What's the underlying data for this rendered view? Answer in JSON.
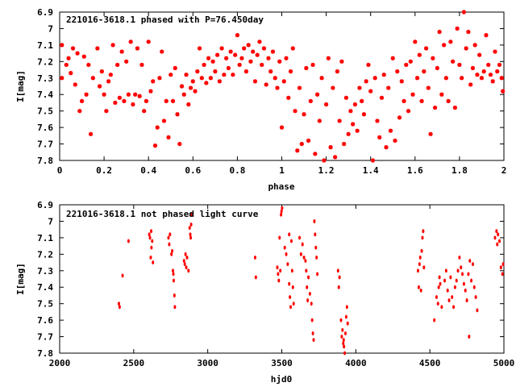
{
  "marker_color": "#ff0000",
  "chart_data": [
    {
      "type": "scatter",
      "title": "221016-3618.1 phased with P=76.450day",
      "xlabel": "phase",
      "ylabel": "I[mag]",
      "xlim": [
        0,
        2
      ],
      "ylim": [
        6.9,
        7.8
      ],
      "y_inverted": true,
      "grid": false,
      "x_ticks": [
        "0",
        "0.2",
        "0.4",
        "0.6",
        "0.8",
        "1",
        "1.2",
        "1.4",
        "1.6",
        "1.8",
        "2"
      ],
      "y_ticks": [
        "6.9",
        "7",
        "7.1",
        "7.2",
        "7.3",
        "7.4",
        "7.5",
        "7.6",
        "7.7",
        "7.8"
      ],
      "marker": "star",
      "points": [
        [
          0.01,
          7.1
        ],
        [
          0.01,
          7.3
        ],
        [
          0.03,
          7.22
        ],
        [
          0.04,
          7.18
        ],
        [
          0.05,
          7.27
        ],
        [
          0.06,
          7.12
        ],
        [
          0.07,
          7.34
        ],
        [
          0.08,
          7.15
        ],
        [
          0.09,
          7.5
        ],
        [
          0.1,
          7.44
        ],
        [
          0.11,
          7.17
        ],
        [
          0.12,
          7.4
        ],
        [
          0.13,
          7.22
        ],
        [
          0.14,
          7.64
        ],
        [
          0.15,
          7.3
        ],
        [
          0.17,
          7.12
        ],
        [
          0.18,
          7.35
        ],
        [
          0.19,
          7.26
        ],
        [
          0.2,
          7.4
        ],
        [
          0.21,
          7.5
        ],
        [
          0.22,
          7.32
        ],
        [
          0.23,
          7.28
        ],
        [
          0.24,
          7.1
        ],
        [
          0.25,
          7.45
        ],
        [
          0.26,
          7.22
        ],
        [
          0.27,
          7.42
        ],
        [
          0.28,
          7.14
        ],
        [
          0.29,
          7.44
        ],
        [
          0.3,
          7.2
        ],
        [
          0.31,
          7.4
        ],
        [
          0.32,
          7.08
        ],
        [
          0.33,
          7.46
        ],
        [
          0.34,
          7.4
        ],
        [
          0.35,
          7.12
        ],
        [
          0.36,
          7.41
        ],
        [
          0.37,
          7.22
        ],
        [
          0.38,
          7.5
        ],
        [
          0.39,
          7.44
        ],
        [
          0.4,
          7.08
        ],
        [
          0.41,
          7.38
        ],
        [
          0.42,
          7.32
        ],
        [
          0.43,
          7.71
        ],
        [
          0.44,
          7.6
        ],
        [
          0.45,
          7.3
        ],
        [
          0.46,
          7.14
        ],
        [
          0.47,
          7.56
        ],
        [
          0.48,
          7.44
        ],
        [
          0.49,
          7.66
        ],
        [
          0.5,
          7.28
        ],
        [
          0.51,
          7.44
        ],
        [
          0.52,
          7.24
        ],
        [
          0.53,
          7.52
        ],
        [
          0.54,
          7.7
        ],
        [
          0.55,
          7.35
        ],
        [
          0.56,
          7.4
        ],
        [
          0.57,
          7.28
        ],
        [
          0.58,
          7.46
        ],
        [
          0.59,
          7.36
        ],
        [
          0.6,
          7.32
        ],
        [
          0.61,
          7.38
        ],
        [
          0.62,
          7.26
        ],
        [
          0.63,
          7.12
        ],
        [
          0.64,
          7.3
        ],
        [
          0.65,
          7.22
        ],
        [
          0.66,
          7.33
        ],
        [
          0.67,
          7.18
        ],
        [
          0.68,
          7.3
        ],
        [
          0.69,
          7.2
        ],
        [
          0.7,
          7.26
        ],
        [
          0.71,
          7.16
        ],
        [
          0.72,
          7.32
        ],
        [
          0.73,
          7.12
        ],
        [
          0.74,
          7.28
        ],
        [
          0.75,
          7.18
        ],
        [
          0.76,
          7.24
        ],
        [
          0.77,
          7.14
        ],
        [
          0.78,
          7.28
        ],
        [
          0.79,
          7.16
        ],
        [
          0.8,
          7.04
        ],
        [
          0.81,
          7.22
        ],
        [
          0.82,
          7.18
        ],
        [
          0.83,
          7.12
        ],
        [
          0.84,
          7.26
        ],
        [
          0.85,
          7.1
        ],
        [
          0.86,
          7.2
        ],
        [
          0.87,
          7.14
        ],
        [
          0.88,
          7.32
        ],
        [
          0.89,
          7.16
        ],
        [
          0.9,
          7.08
        ],
        [
          0.91,
          7.22
        ],
        [
          0.92,
          7.12
        ],
        [
          0.93,
          7.34
        ],
        [
          0.94,
          7.18
        ],
        [
          0.95,
          7.26
        ],
        [
          0.96,
          7.14
        ],
        [
          0.97,
          7.3
        ],
        [
          0.98,
          7.36
        ],
        [
          0.99,
          7.2
        ],
        [
          1.0,
          7.6
        ],
        [
          1.01,
          7.32
        ],
        [
          1.02,
          7.18
        ],
        [
          1.03,
          7.42
        ],
        [
          1.04,
          7.26
        ],
        [
          1.05,
          7.12
        ],
        [
          1.06,
          7.5
        ],
        [
          1.07,
          7.74
        ],
        [
          1.08,
          7.36
        ],
        [
          1.09,
          7.7
        ],
        [
          1.1,
          7.52
        ],
        [
          1.11,
          7.24
        ],
        [
          1.12,
          7.68
        ],
        [
          1.13,
          7.44
        ],
        [
          1.14,
          7.22
        ],
        [
          1.15,
          7.76
        ],
        [
          1.16,
          7.4
        ],
        [
          1.17,
          7.56
        ],
        [
          1.18,
          7.3
        ],
        [
          1.19,
          7.8
        ],
        [
          1.2,
          7.46
        ],
        [
          1.21,
          7.18
        ],
        [
          1.22,
          7.72
        ],
        [
          1.23,
          7.36
        ],
        [
          1.24,
          7.78
        ],
        [
          1.25,
          7.26
        ],
        [
          1.26,
          7.56
        ],
        [
          1.27,
          7.2
        ],
        [
          1.28,
          7.7
        ],
        [
          1.29,
          7.42
        ],
        [
          1.3,
          7.64
        ],
        [
          1.31,
          7.5
        ],
        [
          1.32,
          7.58
        ],
        [
          1.33,
          7.46
        ],
        [
          1.34,
          7.62
        ],
        [
          1.35,
          7.36
        ],
        [
          1.36,
          7.44
        ],
        [
          1.37,
          7.52
        ],
        [
          1.38,
          7.32
        ],
        [
          1.39,
          7.22
        ],
        [
          1.4,
          7.38
        ],
        [
          1.41,
          7.8
        ],
        [
          1.42,
          7.3
        ],
        [
          1.43,
          7.56
        ],
        [
          1.44,
          7.66
        ],
        [
          1.45,
          7.42
        ],
        [
          1.46,
          7.28
        ],
        [
          1.47,
          7.72
        ],
        [
          1.48,
          7.36
        ],
        [
          1.49,
          7.62
        ],
        [
          1.5,
          7.18
        ],
        [
          1.51,
          7.68
        ],
        [
          1.52,
          7.26
        ],
        [
          1.53,
          7.54
        ],
        [
          1.54,
          7.32
        ],
        [
          1.55,
          7.44
        ],
        [
          1.56,
          7.22
        ],
        [
          1.57,
          7.5
        ],
        [
          1.58,
          7.2
        ],
        [
          1.59,
          7.4
        ],
        [
          1.6,
          7.08
        ],
        [
          1.61,
          7.3
        ],
        [
          1.62,
          7.16
        ],
        [
          1.63,
          7.44
        ],
        [
          1.64,
          7.26
        ],
        [
          1.65,
          7.12
        ],
        [
          1.66,
          7.36
        ],
        [
          1.67,
          7.64
        ],
        [
          1.68,
          7.18
        ],
        [
          1.69,
          7.48
        ],
        [
          1.7,
          7.24
        ],
        [
          1.71,
          7.02
        ],
        [
          1.72,
          7.4
        ],
        [
          1.73,
          7.1
        ],
        [
          1.74,
          7.3
        ],
        [
          1.75,
          7.44
        ],
        [
          1.76,
          7.08
        ],
        [
          1.77,
          7.2
        ],
        [
          1.78,
          7.48
        ],
        [
          1.79,
          7.0
        ],
        [
          1.8,
          7.22
        ],
        [
          1.81,
          7.3
        ],
        [
          1.82,
          6.9
        ],
        [
          1.83,
          7.12
        ],
        [
          1.84,
          7.02
        ],
        [
          1.85,
          7.34
        ],
        [
          1.86,
          7.24
        ],
        [
          1.87,
          7.1
        ],
        [
          1.88,
          7.28
        ],
        [
          1.89,
          7.16
        ],
        [
          1.9,
          7.3
        ],
        [
          1.91,
          7.26
        ],
        [
          1.92,
          7.04
        ],
        [
          1.93,
          7.22
        ],
        [
          1.94,
          7.28
        ],
        [
          1.95,
          7.32
        ],
        [
          1.96,
          7.14
        ],
        [
          1.97,
          7.26
        ],
        [
          1.98,
          7.22
        ],
        [
          1.99,
          7.3
        ],
        [
          1.995,
          7.38
        ]
      ]
    },
    {
      "type": "scatter",
      "title": "221016-3618.1 not phased light curve",
      "xlabel": "hjd0",
      "ylabel": "I[mag]",
      "xlim": [
        2000,
        5000
      ],
      "ylim": [
        6.9,
        7.8
      ],
      "y_inverted": true,
      "grid": false,
      "x_ticks": [
        "2000",
        "2500",
        "3000",
        "3500",
        "4000",
        "4500",
        "5000"
      ],
      "y_ticks": [
        "6.9",
        "7",
        "7.1",
        "7.2",
        "7.3",
        "7.4",
        "7.5",
        "7.6",
        "7.7",
        "7.8"
      ],
      "marker": "dot",
      "points": [
        [
          2400,
          7.5
        ],
        [
          2405,
          7.52
        ],
        [
          2425,
          7.33
        ],
        [
          2465,
          7.12
        ],
        [
          2605,
          7.08
        ],
        [
          2610,
          7.1
        ],
        [
          2615,
          7.22
        ],
        [
          2620,
          7.16
        ],
        [
          2625,
          7.12
        ],
        [
          2630,
          7.25
        ],
        [
          2618,
          7.06
        ],
        [
          2735,
          7.1
        ],
        [
          2740,
          7.14
        ],
        [
          2745,
          7.08
        ],
        [
          2755,
          7.2
        ],
        [
          2760,
          7.18
        ],
        [
          2765,
          7.3
        ],
        [
          2770,
          7.36
        ],
        [
          2775,
          7.45
        ],
        [
          2778,
          7.52
        ],
        [
          2768,
          7.32
        ],
        [
          2840,
          7.24
        ],
        [
          2845,
          7.26
        ],
        [
          2850,
          7.2
        ],
        [
          2855,
          7.28
        ],
        [
          2860,
          7.22
        ],
        [
          2870,
          7.3
        ],
        [
          2878,
          7.04
        ],
        [
          2882,
          7.08
        ],
        [
          2888,
          7.02
        ],
        [
          2892,
          6.96
        ],
        [
          2885,
          7.1
        ],
        [
          3320,
          7.22
        ],
        [
          3325,
          7.34
        ],
        [
          3470,
          7.28
        ],
        [
          3475,
          7.32
        ],
        [
          3480,
          7.36
        ],
        [
          3485,
          7.1
        ],
        [
          3490,
          7.3
        ],
        [
          3495,
          6.96
        ],
        [
          3498,
          6.94
        ],
        [
          3502,
          6.92
        ],
        [
          3520,
          7.16
        ],
        [
          3530,
          7.2
        ],
        [
          3540,
          7.26
        ],
        [
          3550,
          7.38
        ],
        [
          3555,
          7.46
        ],
        [
          3560,
          7.52
        ],
        [
          3565,
          7.12
        ],
        [
          3570,
          7.3
        ],
        [
          3575,
          7.4
        ],
        [
          3580,
          7.5
        ],
        [
          3550,
          7.08
        ],
        [
          3620,
          7.1
        ],
        [
          3630,
          7.2
        ],
        [
          3640,
          7.14
        ],
        [
          3650,
          7.22
        ],
        [
          3660,
          7.24
        ],
        [
          3665,
          7.3
        ],
        [
          3670,
          7.4
        ],
        [
          3675,
          7.48
        ],
        [
          3680,
          7.34
        ],
        [
          3690,
          7.44
        ],
        [
          3700,
          7.5
        ],
        [
          3705,
          7.6
        ],
        [
          3710,
          7.68
        ],
        [
          3715,
          7.72
        ],
        [
          3720,
          7.0
        ],
        [
          3725,
          7.08
        ],
        [
          3730,
          7.16
        ],
        [
          3735,
          7.22
        ],
        [
          3740,
          7.32
        ],
        [
          3880,
          7.3
        ],
        [
          3885,
          7.4
        ],
        [
          3890,
          7.34
        ],
        [
          3900,
          7.6
        ],
        [
          3905,
          7.7
        ],
        [
          3910,
          7.66
        ],
        [
          3915,
          7.74
        ],
        [
          3920,
          7.76
        ],
        [
          3925,
          7.8
        ],
        [
          3930,
          7.68
        ],
        [
          3935,
          7.58
        ],
        [
          3940,
          7.52
        ],
        [
          3945,
          7.62
        ],
        [
          3918,
          7.72
        ],
        [
          4420,
          7.3
        ],
        [
          4425,
          7.4
        ],
        [
          4430,
          7.26
        ],
        [
          4435,
          7.22
        ],
        [
          4440,
          7.42
        ],
        [
          4445,
          7.18
        ],
        [
          4450,
          7.1
        ],
        [
          4455,
          7.06
        ],
        [
          4460,
          7.28
        ],
        [
          4530,
          7.6
        ],
        [
          4545,
          7.46
        ],
        [
          4555,
          7.5
        ],
        [
          4560,
          7.4
        ],
        [
          4565,
          7.34
        ],
        [
          4570,
          7.38
        ],
        [
          4580,
          7.52
        ],
        [
          4600,
          7.36
        ],
        [
          4610,
          7.3
        ],
        [
          4620,
          7.42
        ],
        [
          4630,
          7.48
        ],
        [
          4640,
          7.34
        ],
        [
          4650,
          7.46
        ],
        [
          4660,
          7.52
        ],
        [
          4670,
          7.4
        ],
        [
          4680,
          7.36
        ],
        [
          4690,
          7.3
        ],
        [
          4700,
          7.22
        ],
        [
          4710,
          7.28
        ],
        [
          4720,
          7.32
        ],
        [
          4730,
          7.38
        ],
        [
          4740,
          7.42
        ],
        [
          4750,
          7.48
        ],
        [
          4760,
          7.32
        ],
        [
          4765,
          7.7
        ],
        [
          4770,
          7.24
        ],
        [
          4780,
          7.36
        ],
        [
          4790,
          7.26
        ],
        [
          4800,
          7.4
        ],
        [
          4810,
          7.46
        ],
        [
          4820,
          7.54
        ],
        [
          4940,
          7.1
        ],
        [
          4950,
          7.06
        ],
        [
          4955,
          7.14
        ],
        [
          4960,
          7.08
        ],
        [
          4970,
          7.12
        ],
        [
          4980,
          7.28
        ],
        [
          4990,
          7.32
        ],
        [
          4995,
          7.26
        ]
      ]
    }
  ]
}
